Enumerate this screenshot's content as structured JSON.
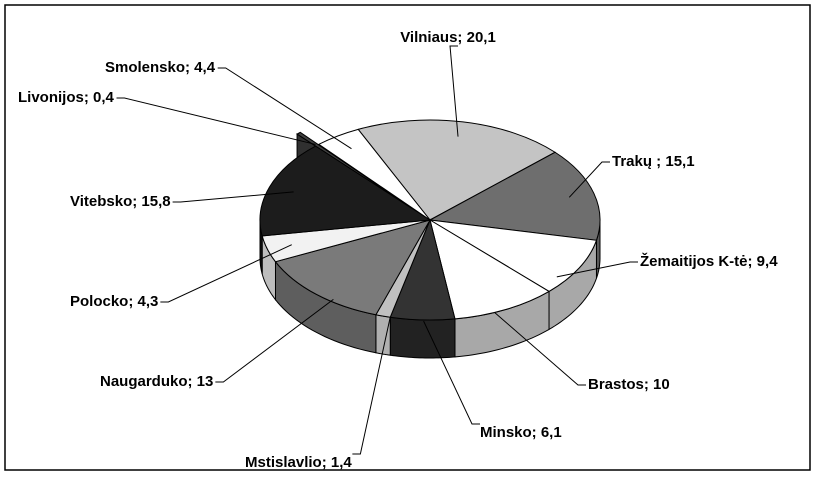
{
  "chart_data": {
    "type": "pie",
    "values": [
      20.1,
      15.1,
      9.4,
      10,
      6.1,
      1.4,
      13,
      4.3,
      15.8,
      0.4,
      4.4
    ],
    "value_labels": [
      "Vilniaus; 20,1",
      "Trakų ; 15,1",
      "Žemaitijos K-tė; 9,4",
      "Brastos; 10",
      "Minsko; 6,1",
      "Mstislavlio; 1,4",
      "Naugarduko; 13",
      "Polocko; 4,3",
      "Vitebsko; 15,8",
      "Livonijos; 0,4",
      "Smolensko; 4,4"
    ],
    "colors": [
      "#c4c4c4",
      "#6e6e6e",
      "#ffffff",
      "#ffffff",
      "#333333",
      "#c0c0c0",
      "#7a7a7a",
      "#f2f2f2",
      "#1c1c1c",
      "#404040",
      "#ffffff"
    ],
    "side_colors": [
      "#9a9a9a",
      "#5a5a5a",
      "#a8a8a8",
      "#a8a8a8",
      "#222222",
      "#b0b0b0",
      "#5e5e5e",
      "#bdbdbd",
      "#111111",
      "#303030",
      "#d8d8d8"
    ],
    "exploded": [
      9
    ]
  }
}
